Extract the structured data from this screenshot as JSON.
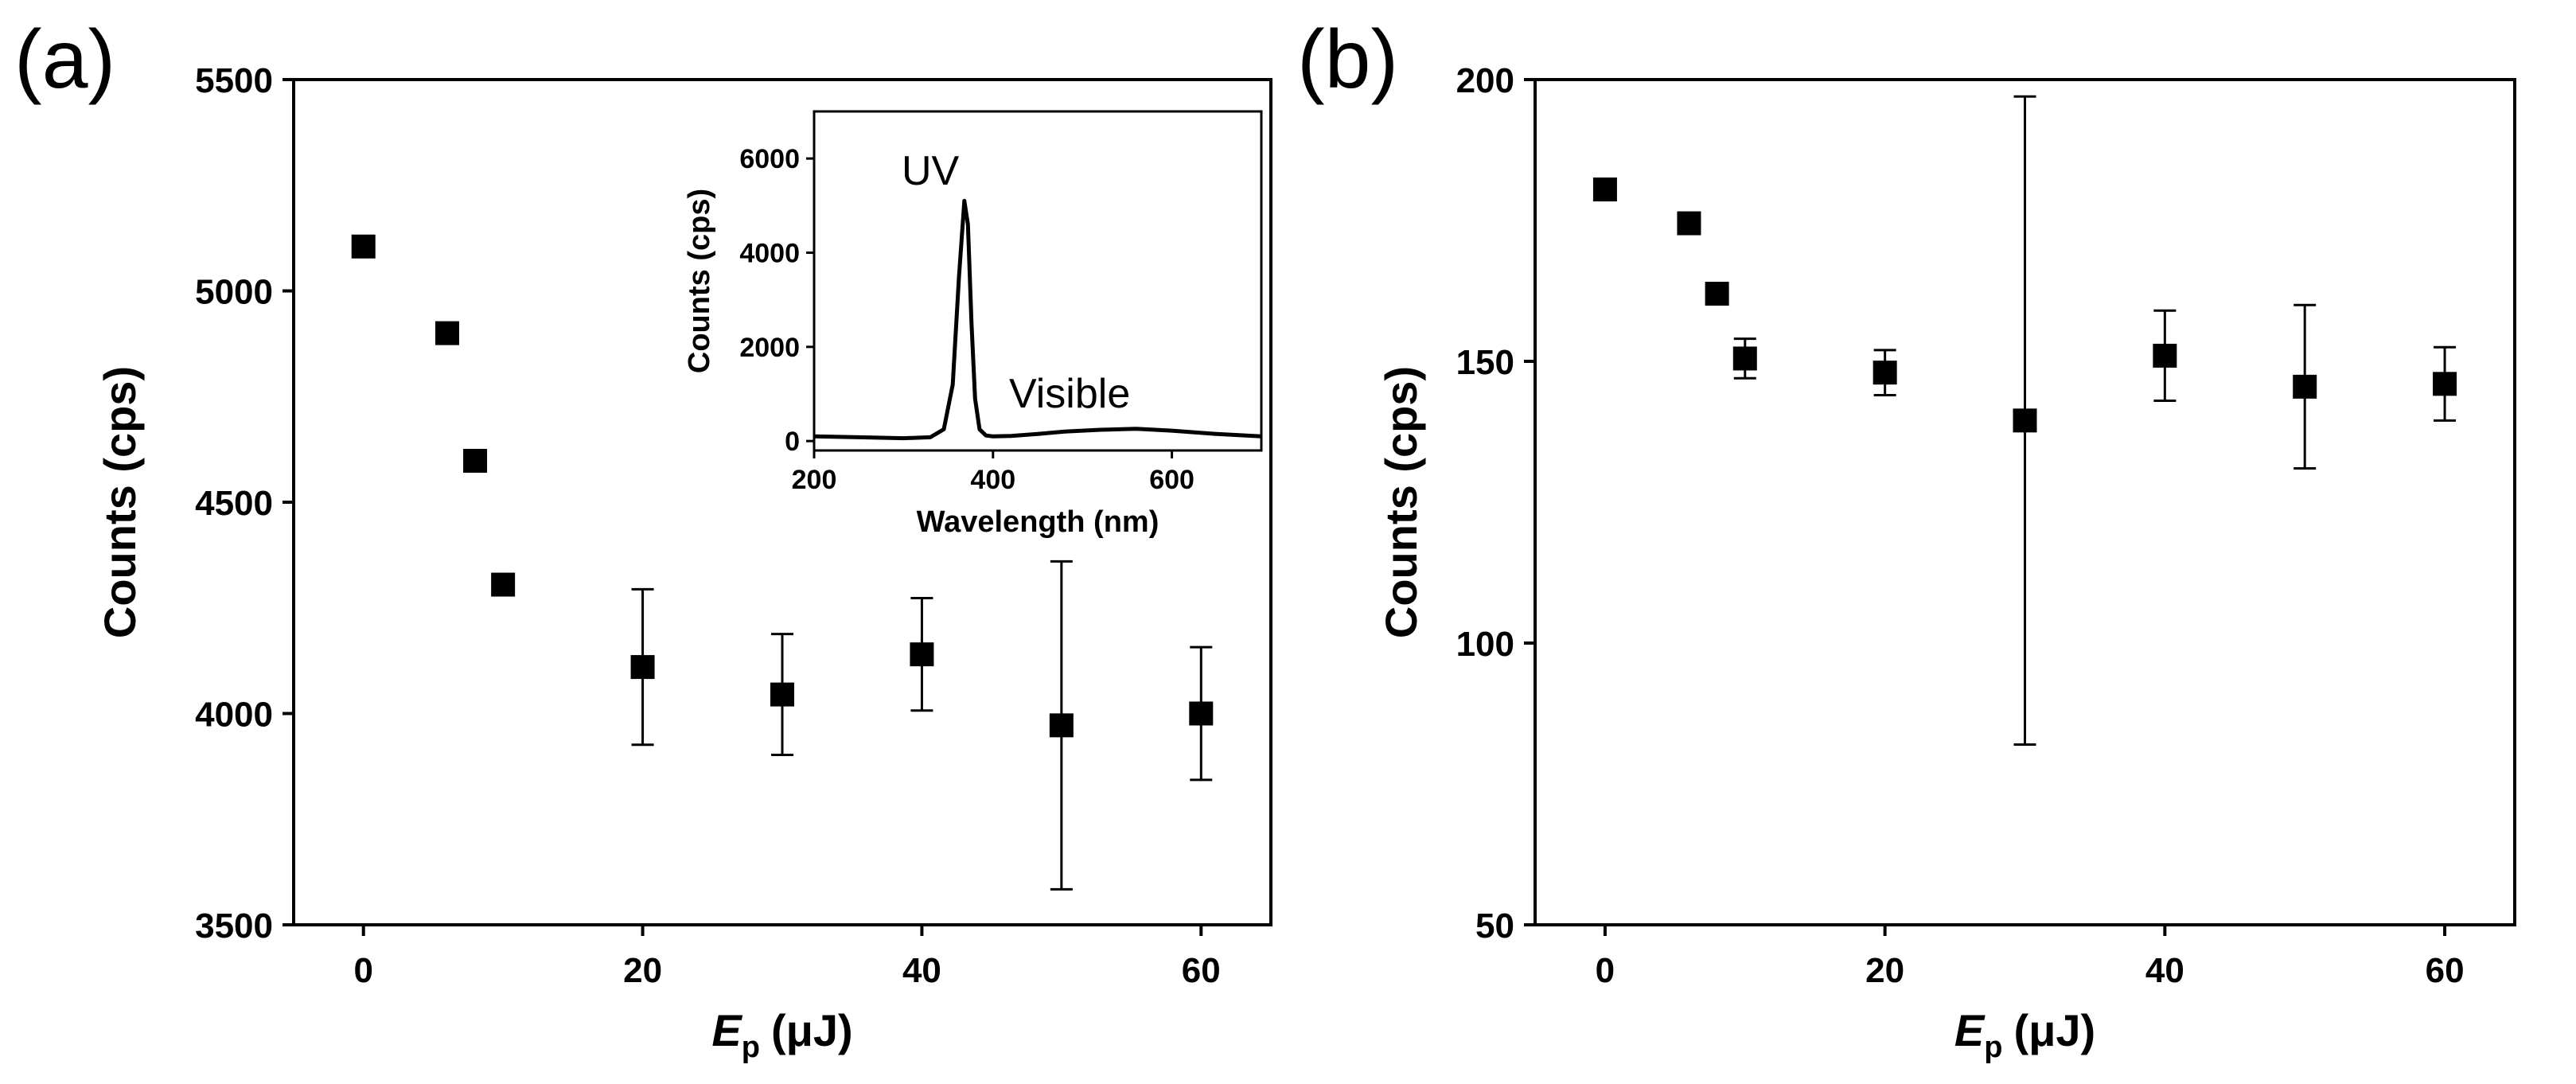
{
  "chart_data": [
    {
      "panel_label": "(a)",
      "type": "scatter",
      "xlabel_main": "E",
      "xlabel_sub": "p",
      "xlabel_unit": "(μJ)",
      "ylabel": "Counts (cps)",
      "xlim": [
        -5,
        65
      ],
      "ylim": [
        3500,
        5500
      ],
      "xticks": [
        0,
        20,
        40,
        60
      ],
      "yticks": [
        3500,
        4000,
        4500,
        5000,
        5500
      ],
      "points": [
        {
          "x": 0,
          "y": 5105,
          "err": 0
        },
        {
          "x": 6,
          "y": 4900,
          "err": 0
        },
        {
          "x": 8,
          "y": 4598,
          "err": 0
        },
        {
          "x": 10,
          "y": 4305,
          "err": 0
        },
        {
          "x": 20,
          "y": 4110,
          "err": 184
        },
        {
          "x": 30,
          "y": 4045,
          "err": 143
        },
        {
          "x": 40,
          "y": 4140,
          "err": 133
        },
        {
          "x": 50,
          "y": 3972,
          "err": 388
        },
        {
          "x": 60,
          "y": 4000,
          "err": 157
        }
      ],
      "inset": {
        "type": "line",
        "xlabel": "Wavelength (nm)",
        "ylabel": "Counts (cps)",
        "xlim": [
          200,
          700
        ],
        "ylim": [
          -200,
          7000
        ],
        "xticks": [
          200,
          400,
          600
        ],
        "yticks": [
          0,
          2000,
          4000,
          6000
        ],
        "annotations": [
          "UV",
          "Visible"
        ],
        "x": [
          200,
          250,
          300,
          330,
          345,
          355,
          362,
          368,
          372,
          376,
          380,
          385,
          392,
          400,
          420,
          450,
          480,
          520,
          560,
          600,
          650,
          700
        ],
        "y": [
          100,
          80,
          60,
          80,
          250,
          1200,
          3500,
          5100,
          4600,
          2500,
          900,
          250,
          120,
          100,
          110,
          150,
          200,
          240,
          260,
          220,
          150,
          100
        ]
      }
    },
    {
      "panel_label": "(b)",
      "type": "scatter",
      "xlabel_main": "E",
      "xlabel_sub": "p",
      "xlabel_unit": "(μJ)",
      "ylabel": "Counts (cps)",
      "xlim": [
        -5,
        65
      ],
      "ylim": [
        50,
        200
      ],
      "xticks": [
        0,
        20,
        40,
        60
      ],
      "yticks": [
        50,
        100,
        150,
        200
      ],
      "points": [
        {
          "x": 0,
          "y": 180.5,
          "err": 0
        },
        {
          "x": 6,
          "y": 174.5,
          "err": 1.8
        },
        {
          "x": 8,
          "y": 162,
          "err": 1.8
        },
        {
          "x": 10,
          "y": 150.5,
          "err": 3.5
        },
        {
          "x": 20,
          "y": 148,
          "err": 4
        },
        {
          "x": 30,
          "y": 139.5,
          "err": 57.5
        },
        {
          "x": 40,
          "y": 151,
          "err": 8
        },
        {
          "x": 50,
          "y": 145.5,
          "err": 14.5
        },
        {
          "x": 60,
          "y": 146,
          "err": 6.5
        }
      ]
    }
  ]
}
